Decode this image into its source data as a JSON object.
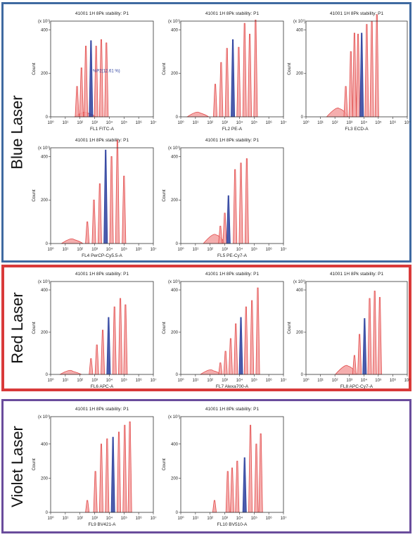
{
  "lasers": [
    {
      "name": "Blue Laser",
      "color": "#3f6aa1"
    },
    {
      "name": "Red Laser",
      "color": "#d93a3a"
    },
    {
      "name": "Violet Laser",
      "color": "#6a4c9c"
    }
  ],
  "common": {
    "ylabel": "Count",
    "ymult": "(x 10¹)",
    "xticks": [
      "10⁰",
      "10¹",
      "10²",
      "10³",
      "10⁴",
      "10⁵",
      "10⁶",
      "10⁷"
    ],
    "bead_color": "#e24c4c",
    "bead_fill": "#f3a0a0",
    "highlight_color": "#2b3f9e"
  },
  "chart_data": [
    {
      "type": "histogram",
      "title": "41001 1H 8Pk stability: P1",
      "xlabel": "FL1 FITC-A",
      "xscale": "log",
      "xlim": [
        1,
        10000000
      ],
      "ylim": [
        0,
        440
      ],
      "yticks": [
        0,
        200,
        400
      ],
      "peaks": [
        {
          "x": 2.5,
          "height": 18,
          "broad": true
        },
        {
          "x": 1.8,
          "height": 140
        },
        {
          "x": 2.1,
          "height": 225
        },
        {
          "x": 2.4,
          "height": 325
        },
        {
          "x": 2.75,
          "height": 350,
          "highlight": true
        },
        {
          "x": 3.1,
          "height": 325
        },
        {
          "x": 3.45,
          "height": 355
        },
        {
          "x": 3.8,
          "height": 340
        }
      ],
      "annotation": {
        "text": "%P2(12.61 %)",
        "x": 2.78,
        "y": 205
      }
    },
    {
      "type": "histogram",
      "title": "41001 1H 8Pk stability: P1",
      "xlabel": "FL2 PE-A",
      "xscale": "log",
      "xlim": [
        1,
        10000000
      ],
      "ylim": [
        0,
        440
      ],
      "yticks": [
        0,
        200,
        400
      ],
      "peaks": [
        {
          "x": 1.3,
          "height": 18,
          "broad": true
        },
        {
          "x": 2.35,
          "height": 150
        },
        {
          "x": 2.75,
          "height": 250
        },
        {
          "x": 3.15,
          "height": 315
        },
        {
          "x": 3.55,
          "height": 355,
          "highlight": true
        },
        {
          "x": 3.95,
          "height": 320
        },
        {
          "x": 4.35,
          "height": 430
        },
        {
          "x": 4.7,
          "height": 380
        },
        {
          "x": 5.1,
          "height": 445
        }
      ]
    },
    {
      "type": "histogram",
      "title": "41001 1H 8Pk stability: P1",
      "xlabel": "FL3 ECD-A",
      "xscale": "log",
      "xlim": [
        1,
        10000000
      ],
      "ylim": [
        0,
        440
      ],
      "yticks": [
        0,
        200,
        400
      ],
      "peaks": [
        {
          "x": 2.3,
          "height": 38,
          "broad": true
        },
        {
          "x": 2.75,
          "height": 140
        },
        {
          "x": 3.1,
          "height": 300
        },
        {
          "x": 3.35,
          "height": 385
        },
        {
          "x": 3.6,
          "height": 380
        },
        {
          "x": 3.85,
          "height": 385,
          "highlight": true
        },
        {
          "x": 4.2,
          "height": 425
        },
        {
          "x": 4.55,
          "height": 440
        },
        {
          "x": 4.9,
          "height": 470
        }
      ]
    },
    {
      "type": "histogram",
      "title": "41001 1H 8Pk stability: P1",
      "xlabel": "FL4 PerCP-Cy5.5-A",
      "xscale": "log",
      "xlim": [
        1,
        10000000
      ],
      "ylim": [
        0,
        440
      ],
      "yticks": [
        0,
        200,
        400
      ],
      "peaks": [
        {
          "x": 1.6,
          "height": 18,
          "broad": true
        },
        {
          "x": 2.5,
          "height": 100
        },
        {
          "x": 2.95,
          "height": 200
        },
        {
          "x": 3.35,
          "height": 275
        },
        {
          "x": 3.75,
          "height": 430,
          "highlight": true
        },
        {
          "x": 4.15,
          "height": 400
        },
        {
          "x": 4.55,
          "height": 475
        },
        {
          "x": 5.0,
          "height": 310
        }
      ]
    },
    {
      "type": "histogram",
      "title": "41001 1H 8Pk stability: P1",
      "xlabel": "FL5 PE-Cy7-A",
      "xscale": "log",
      "xlim": [
        1,
        10000000
      ],
      "ylim": [
        0,
        440
      ],
      "yticks": [
        0,
        200,
        400
      ],
      "peaks": [
        {
          "x": 2.4,
          "height": 40,
          "broad": true
        },
        {
          "x": 2.7,
          "height": 80
        },
        {
          "x": 3.0,
          "height": 140
        },
        {
          "x": 3.25,
          "height": 220,
          "highlight": true
        },
        {
          "x": 3.7,
          "height": 340
        },
        {
          "x": 4.1,
          "height": 370
        },
        {
          "x": 4.5,
          "height": 390
        }
      ]
    },
    {
      "type": "histogram",
      "title": "41001 1H 8Pk stability: P1",
      "xlabel": "FL6 APC-A",
      "xscale": "log",
      "xlim": [
        1,
        10000000
      ],
      "ylim": [
        0,
        440
      ],
      "yticks": [
        0,
        200,
        400
      ],
      "peaks": [
        {
          "x": 1.5,
          "height": 15,
          "broad": true
        },
        {
          "x": 2.75,
          "height": 75
        },
        {
          "x": 3.15,
          "height": 140
        },
        {
          "x": 3.55,
          "height": 210
        },
        {
          "x": 3.95,
          "height": 270,
          "highlight": true
        },
        {
          "x": 4.35,
          "height": 320
        },
        {
          "x": 4.75,
          "height": 360
        },
        {
          "x": 5.1,
          "height": 330
        }
      ]
    },
    {
      "type": "histogram",
      "title": "41001 1H 8Pk stability: P1",
      "xlabel": "FL7 Alexa700-A",
      "xscale": "log",
      "xlim": [
        1,
        10000000
      ],
      "ylim": [
        0,
        440
      ],
      "yticks": [
        0,
        200,
        400
      ],
      "peaks": [
        {
          "x": 2.2,
          "height": 18,
          "broad": true
        },
        {
          "x": 2.7,
          "height": 55
        },
        {
          "x": 3.05,
          "height": 110
        },
        {
          "x": 3.4,
          "height": 170
        },
        {
          "x": 3.75,
          "height": 240
        },
        {
          "x": 4.1,
          "height": 270,
          "highlight": true
        },
        {
          "x": 4.45,
          "height": 320
        },
        {
          "x": 4.85,
          "height": 350
        },
        {
          "x": 5.25,
          "height": 410
        }
      ]
    },
    {
      "type": "histogram",
      "title": "41001 1H 8Pk stability: P1",
      "xlabel": "FL8 APC-Cy7-A",
      "xscale": "log",
      "xlim": [
        1,
        10000000
      ],
      "ylim": [
        0,
        440
      ],
      "yticks": [
        0,
        200,
        400
      ],
      "peaks": [
        {
          "x": 2.9,
          "height": 40,
          "broad": true
        },
        {
          "x": 3.35,
          "height": 90
        },
        {
          "x": 3.7,
          "height": 190
        },
        {
          "x": 4.05,
          "height": 265,
          "highlight": true
        },
        {
          "x": 4.4,
          "height": 360
        },
        {
          "x": 4.75,
          "height": 395
        },
        {
          "x": 5.1,
          "height": 365
        }
      ]
    },
    {
      "type": "histogram",
      "title": "41001 1H 8Pk stability: P1",
      "xlabel": "FL9 BV421-A",
      "xscale": "log",
      "xlim": [
        1,
        10000000
      ],
      "ylim": [
        0,
        560
      ],
      "yticks": [
        0,
        200,
        400
      ],
      "peaks": [
        {
          "x": 2.5,
          "height": 70
        },
        {
          "x": 3.05,
          "height": 240
        },
        {
          "x": 3.45,
          "height": 400
        },
        {
          "x": 3.85,
          "height": 430
        },
        {
          "x": 4.25,
          "height": 440,
          "highlight": true
        },
        {
          "x": 4.65,
          "height": 470
        },
        {
          "x": 5.05,
          "height": 510
        },
        {
          "x": 5.4,
          "height": 530
        }
      ]
    },
    {
      "type": "histogram",
      "title": "41001 1H 8Pk stability: P1",
      "xlabel": "FL10 BV510-A",
      "xscale": "log",
      "xlim": [
        1,
        10000000
      ],
      "ylim": [
        0,
        560
      ],
      "yticks": [
        0,
        200,
        400
      ],
      "peaks": [
        {
          "x": 2.3,
          "height": 70
        },
        {
          "x": 3.2,
          "height": 240
        },
        {
          "x": 3.5,
          "height": 260
        },
        {
          "x": 3.85,
          "height": 300
        },
        {
          "x": 4.35,
          "height": 320,
          "highlight": true
        },
        {
          "x": 4.75,
          "height": 510
        },
        {
          "x": 5.15,
          "height": 400
        },
        {
          "x": 5.45,
          "height": 460
        }
      ]
    }
  ]
}
